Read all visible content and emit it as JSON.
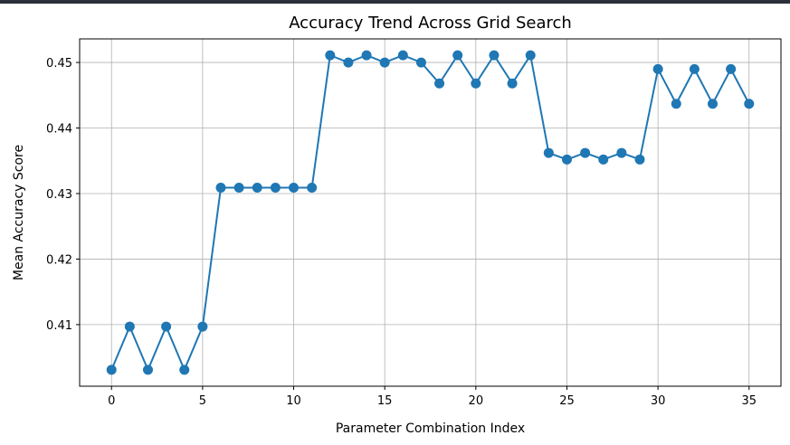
{
  "chart_data": {
    "type": "line",
    "title": "Accuracy Trend Across Grid Search",
    "xlabel": "Parameter Combination Index",
    "ylabel": "Mean Accuracy Score",
    "xlim": [
      -1.75,
      36.75
    ],
    "ylim": [
      0.4006,
      0.4536
    ],
    "xticks": [
      0,
      5,
      10,
      15,
      20,
      25,
      30,
      35
    ],
    "xtick_labels": [
      "0",
      "5",
      "10",
      "15",
      "20",
      "25",
      "30",
      "35"
    ],
    "yticks": [
      0.41,
      0.42,
      0.43,
      0.44,
      0.45
    ],
    "ytick_labels": [
      "0.41",
      "0.42",
      "0.43",
      "0.44",
      "0.45"
    ],
    "grid": true,
    "marker": "circle",
    "color": "#1f77b4",
    "x": [
      0,
      1,
      2,
      3,
      4,
      5,
      6,
      7,
      8,
      9,
      10,
      11,
      12,
      13,
      14,
      15,
      16,
      17,
      18,
      19,
      20,
      21,
      22,
      23,
      24,
      25,
      26,
      27,
      28,
      29,
      30,
      31,
      32,
      33,
      34,
      35
    ],
    "series": [
      {
        "values": [
          0.4031,
          0.4097,
          0.4031,
          0.4097,
          0.4031,
          0.4097,
          0.4309,
          0.4309,
          0.4309,
          0.4309,
          0.4309,
          0.4309,
          0.4511,
          0.45,
          0.4511,
          0.45,
          0.4511,
          0.45,
          0.4468,
          0.4511,
          0.4468,
          0.4511,
          0.4468,
          0.4511,
          0.4362,
          0.4352,
          0.4362,
          0.4352,
          0.4362,
          0.4352,
          0.449,
          0.4437,
          0.449,
          0.4437,
          0.449,
          0.4437
        ]
      }
    ]
  }
}
